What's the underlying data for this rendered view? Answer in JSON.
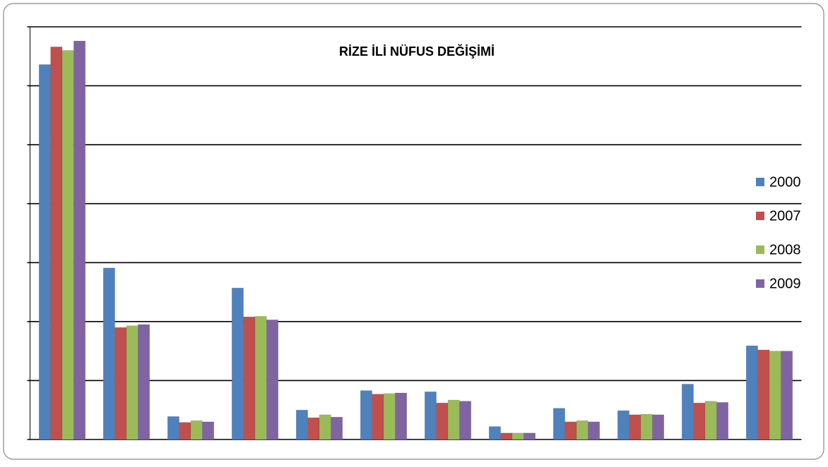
{
  "chart_data": {
    "type": "bar",
    "title": "RİZE İLİ NÜFUS DEĞİŞİMİ",
    "categories": [
      null,
      null,
      null,
      null,
      null,
      null,
      null,
      null,
      null,
      null,
      null,
      null
    ],
    "series": [
      {
        "name": "2000",
        "color": "#4f81bd",
        "values": [
          6.36,
          2.91,
          0.39,
          2.57,
          0.5,
          0.83,
          0.81,
          0.22,
          0.53,
          0.49,
          0.94,
          1.59
        ]
      },
      {
        "name": "2007",
        "color": "#c0504d",
        "values": [
          6.66,
          1.9,
          0.29,
          2.08,
          0.37,
          0.77,
          0.62,
          0.11,
          0.3,
          0.42,
          0.62,
          1.52
        ]
      },
      {
        "name": "2008",
        "color": "#9bbb59",
        "values": [
          6.6,
          1.93,
          0.32,
          2.09,
          0.42,
          0.78,
          0.67,
          0.11,
          0.32,
          0.43,
          0.65,
          1.5
        ]
      },
      {
        "name": "2009",
        "color": "#8064a2",
        "values": [
          6.76,
          1.95,
          0.3,
          2.03,
          0.38,
          0.79,
          0.65,
          0.11,
          0.3,
          0.42,
          0.63,
          1.5
        ]
      }
    ],
    "ylim": [
      0,
      7
    ],
    "yticks": [
      0,
      1,
      2,
      3,
      4,
      5,
      6,
      7
    ],
    "grid": true,
    "legend": "right"
  }
}
